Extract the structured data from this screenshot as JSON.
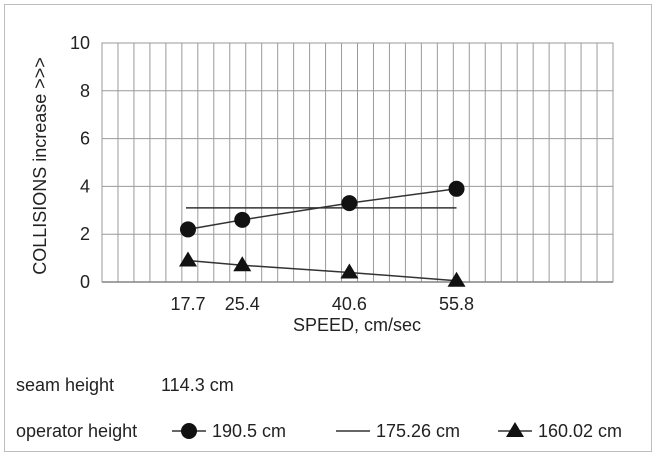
{
  "chart_data": {
    "type": "line",
    "xlabel": "SPEED, cm/sec",
    "ylabel": "COLLISIONS increase >>>",
    "x": [
      17.7,
      25.4,
      40.6,
      55.8
    ],
    "x_tick_labels": [
      "17.7",
      "25.4",
      "40.6",
      "55.8"
    ],
    "ylim": [
      0,
      10
    ],
    "y_ticks": [
      0,
      2,
      4,
      6,
      8,
      10
    ],
    "grid": true,
    "series": [
      {
        "name": "190.5 cm",
        "marker": "circle",
        "values": [
          2.2,
          2.6,
          3.3,
          3.9
        ]
      },
      {
        "name": "175.26 cm",
        "marker": "none",
        "values": [
          3.1,
          3.1,
          3.1,
          3.1
        ]
      },
      {
        "name": "160.02 cm",
        "marker": "triangle",
        "values": [
          0.9,
          0.7,
          0.4,
          0.05
        ]
      }
    ],
    "legend_position": "bottom"
  },
  "seam": {
    "label": "seam height",
    "value": "114.3 cm"
  },
  "legend": {
    "title": "operator height"
  },
  "colors": {
    "series": "#111111",
    "grid": "#9a9a9a",
    "frame": "#bdbdbd"
  }
}
